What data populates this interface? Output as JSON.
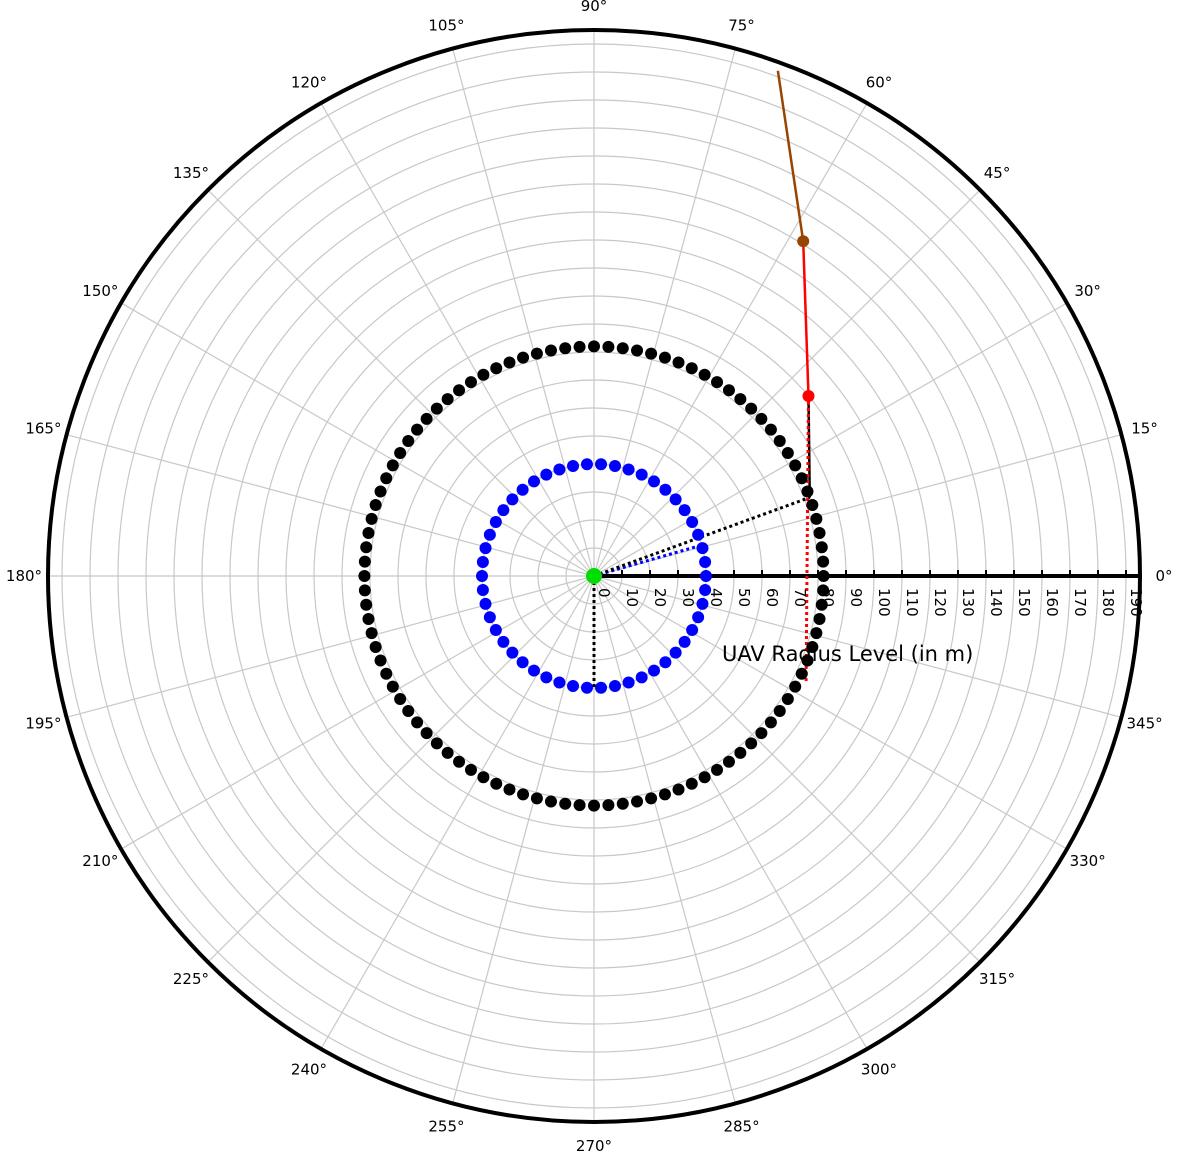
{
  "chart_data": {
    "type": "scatter",
    "subtype": "polar",
    "radial_axis": {
      "label": "UAV Radius Level (in m)",
      "ticks": [
        0,
        10,
        20,
        30,
        40,
        50,
        60,
        70,
        80,
        90,
        100,
        110,
        120,
        130,
        140,
        150,
        160,
        170,
        180,
        190
      ],
      "range": [
        0,
        195
      ],
      "tick_label_angle_deg": 0
    },
    "angular_axis": {
      "ticks_deg": [
        0,
        15,
        30,
        45,
        60,
        75,
        90,
        105,
        120,
        135,
        150,
        165,
        180,
        195,
        210,
        225,
        240,
        255,
        270,
        285,
        300,
        315,
        330,
        345
      ],
      "labels": [
        "0°",
        "15°",
        "30°",
        "45°",
        "60°",
        "75°",
        "90°",
        "105°",
        "120°",
        "135°",
        "150°",
        "165°",
        "180°",
        "195°",
        "210°",
        "225°",
        "240°",
        "255°",
        "270°",
        "285°",
        "300°",
        "315°",
        "330°",
        "345°"
      ]
    },
    "grid": true,
    "circles": [
      {
        "radius": 40,
        "color": "#0000ff",
        "points": 50
      },
      {
        "radius": 82,
        "color": "#000000",
        "points": 100
      }
    ],
    "center_point": {
      "r": 0,
      "theta": 0,
      "color": "#00dd00"
    },
    "path_segments": [
      {
        "from": [
          0,
          0
        ],
        "to": [
          40,
          16
        ],
        "color": "#0000ff",
        "style": "dotted"
      },
      {
        "from": [
          0,
          0
        ],
        "to": [
          82,
          20
        ],
        "color": "#000000",
        "style": "dotted"
      },
      {
        "from": [
          0,
          0
        ],
        "to": [
          40,
          270
        ],
        "color": "#000000",
        "style": "dotted"
      },
      {
        "from": [
          82,
          20
        ],
        "to": [
          100,
          40
        ],
        "color": "#000000",
        "style": "solid"
      },
      {
        "from": [
          100,
          40
        ],
        "to": [
          85,
          333
        ],
        "color": "#ff0000",
        "style": "dotted"
      },
      {
        "from": [
          100,
          40
        ],
        "to": [
          141,
          58
        ],
        "color": "#ff0000",
        "style": "solid"
      },
      {
        "from": [
          141,
          58
        ],
        "to": [
          192,
          70
        ],
        "color": "#994400",
        "style": "solid"
      }
    ],
    "highlight_points": [
      {
        "r": 100,
        "theta": 40,
        "color": "#ff0000"
      },
      {
        "r": 141,
        "theta": 58,
        "color": "#994400"
      }
    ],
    "radius_baseline": {
      "theta": 0,
      "r_max": 195,
      "color": "#000000"
    }
  }
}
